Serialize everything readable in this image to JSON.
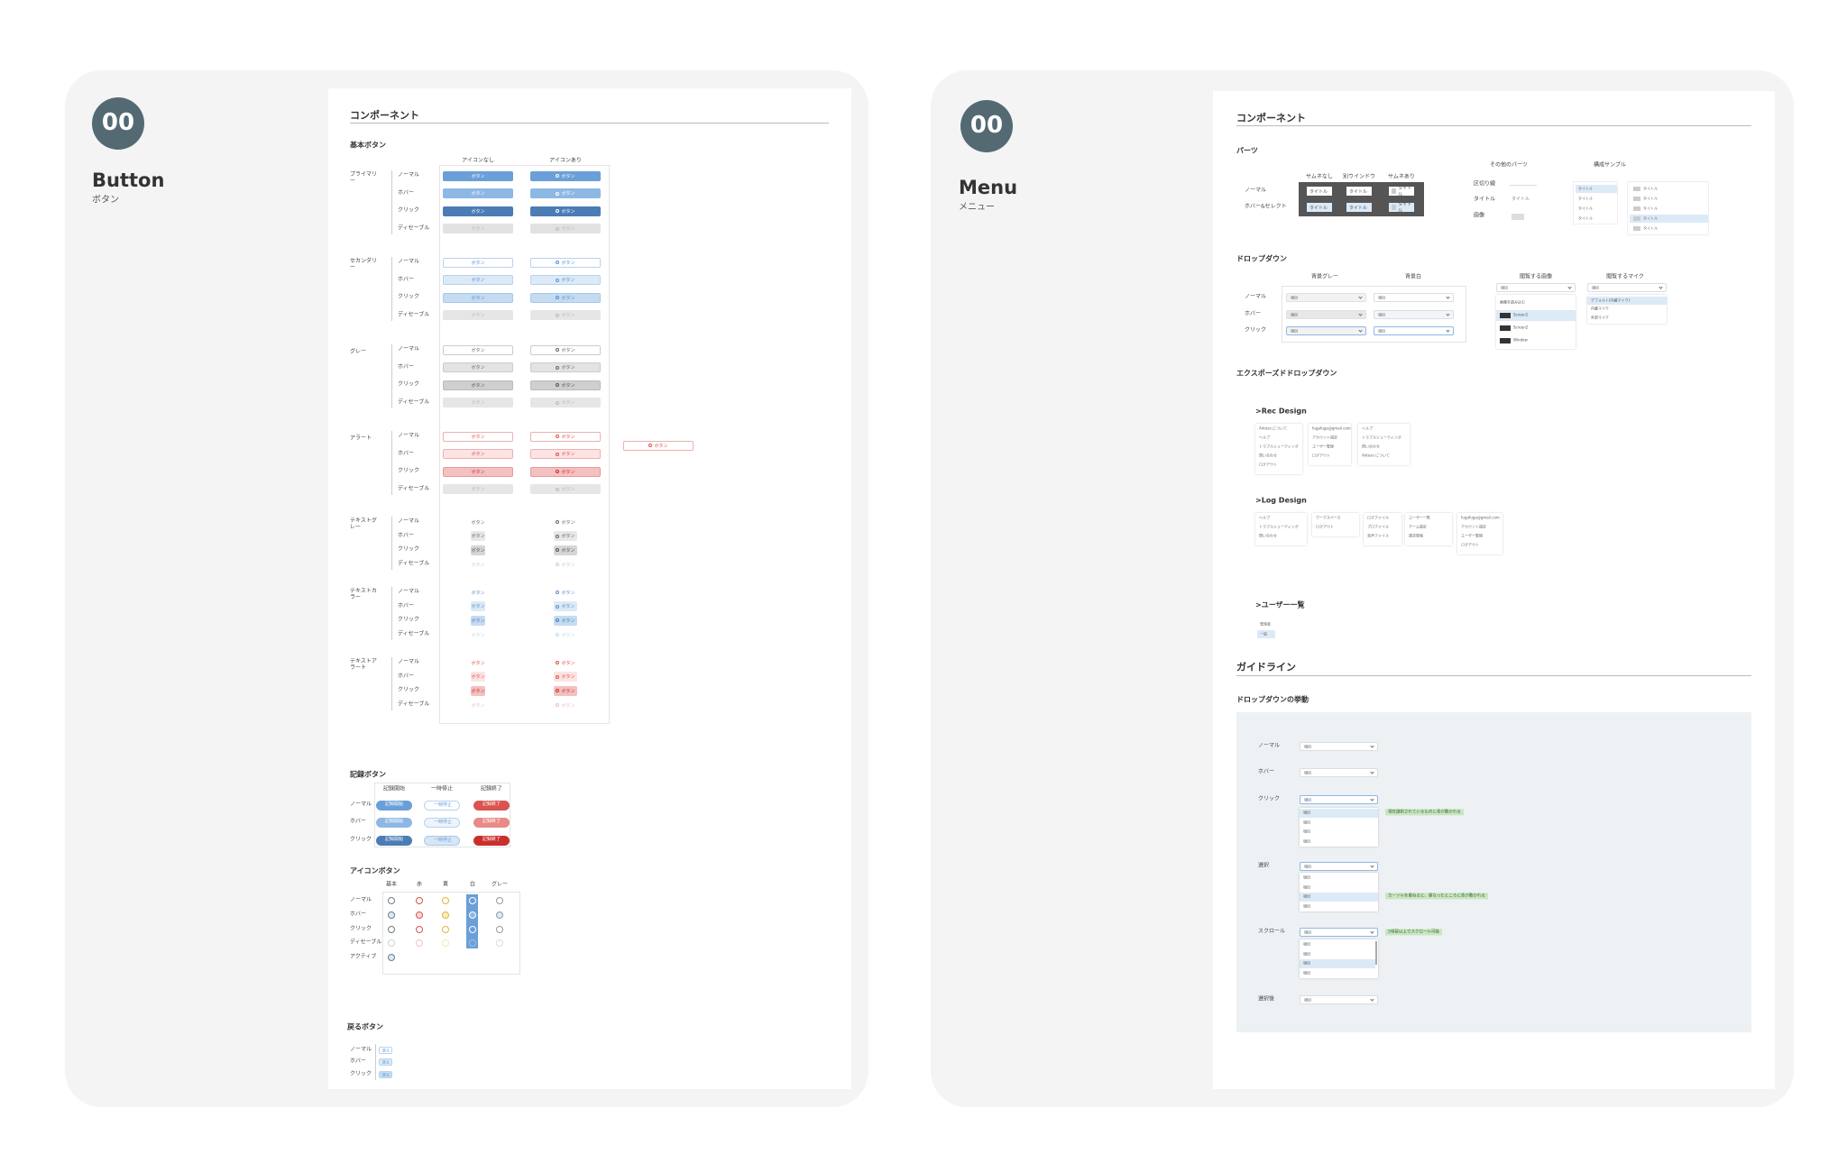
{
  "panels": [
    {
      "number": "00",
      "title": "Button",
      "subtitle": "ボタン"
    },
    {
      "number": "00",
      "title": "Menu",
      "subtitle": "メニュー"
    }
  ],
  "button_page": {
    "heading": "コンポーネント",
    "basic": {
      "title": "基本ボタン",
      "columns": [
        "アイコンなし",
        "アイコンあり"
      ],
      "button_label": "ボタン",
      "states": [
        "ノーマル",
        "ホバー",
        "クリック",
        "ディセーブル"
      ],
      "groups": [
        "プライマリー",
        "セカンダリー",
        "グレー",
        "アラート",
        "テキストグレー",
        "テキストカラー",
        "テキストアラート"
      ]
    },
    "record": {
      "title": "記録ボタン",
      "columns": [
        "記録開始",
        "一時停止",
        "記録終了"
      ],
      "states": [
        "ノーマル",
        "ホバー",
        "クリック"
      ]
    },
    "icon": {
      "title": "アイコンボタン",
      "columns": [
        "基本",
        "赤",
        "黄",
        "白",
        "グレー"
      ],
      "states": [
        "ノーマル",
        "ホバー",
        "クリック",
        "ディセーブル",
        "アクティブ"
      ]
    },
    "back": {
      "title": "戻るボタン",
      "label": "戻る",
      "states": [
        "ノーマル",
        "ホバー",
        "クリック"
      ]
    }
  },
  "menu_page": {
    "heading": "コンポーネント",
    "parts": {
      "title": "パーツ",
      "columns": [
        "サムネなし",
        "別ウインドウ",
        "サムネあり"
      ],
      "rows": [
        "ノーマル",
        "ホバー&セレクト"
      ],
      "item_label": "タイトル",
      "other_title": "その他のパーツ",
      "other_rows": [
        "区切り線",
        "タイトル",
        "画像"
      ],
      "sample_title": "構成サンプル"
    },
    "dropdown": {
      "title": "ドロップダウン",
      "columns": [
        "背景グレー",
        "背景白",
        "閲覧する画像",
        "閲覧するマイク"
      ],
      "rows": [
        "ノーマル",
        "ホバー",
        "クリック"
      ],
      "option_label": "項目",
      "image_items": [
        "画像を読み込む",
        "Screen1",
        "Screen2",
        "Window"
      ],
      "mic_items": [
        "デフォルト(内蔵マイク)",
        "内蔵マイク",
        "外部マイク"
      ]
    },
    "exposed": {
      "title": "エクスポーズドドロップダウン",
      "rec_title": ">Rec Design",
      "rec_menus": [
        [
          "Anteso について",
          "ヘルプ",
          "トラブルシューティング",
          "問い合わせ",
          "ログアウト"
        ],
        [
          "fugafuga@gmail.com",
          "アカウント設定",
          "ユーザー管理",
          "ログアウト"
        ],
        [
          "ヘルプ",
          "トラブルシューティング",
          "問い合わせ",
          "Anteso について"
        ]
      ],
      "log_title": ">Log Design",
      "log_menus": [
        [
          "ヘルプ",
          "トラブルシューティング",
          "問い合わせ"
        ],
        [
          "ワークスペース",
          "ログアウト"
        ],
        [
          "ログファイル",
          "プロファイル",
          "音声ファイル"
        ],
        [
          "ユーザー一覧",
          "チーム設定",
          "請求情報"
        ],
        [
          "fugafuga@gmail.com",
          "アカウント設定",
          "ユーザー管理",
          "ログアウト"
        ]
      ],
      "users_title": ">ユーザー一覧",
      "users_items": [
        "管理者",
        "一般"
      ]
    },
    "guideline": {
      "title": "ガイドライン",
      "subtitle": "ドロップダウンの挙動",
      "rows": [
        "ノーマル",
        "ホバー",
        "クリック",
        "選択",
        "スクロール",
        "選択後"
      ],
      "notes": [
        "現在選択されているものに青が敷かれる",
        "カーソルを重ねると、重なったところに青が敷かれる",
        "5項目以上でスクロール可能"
      ]
    }
  }
}
